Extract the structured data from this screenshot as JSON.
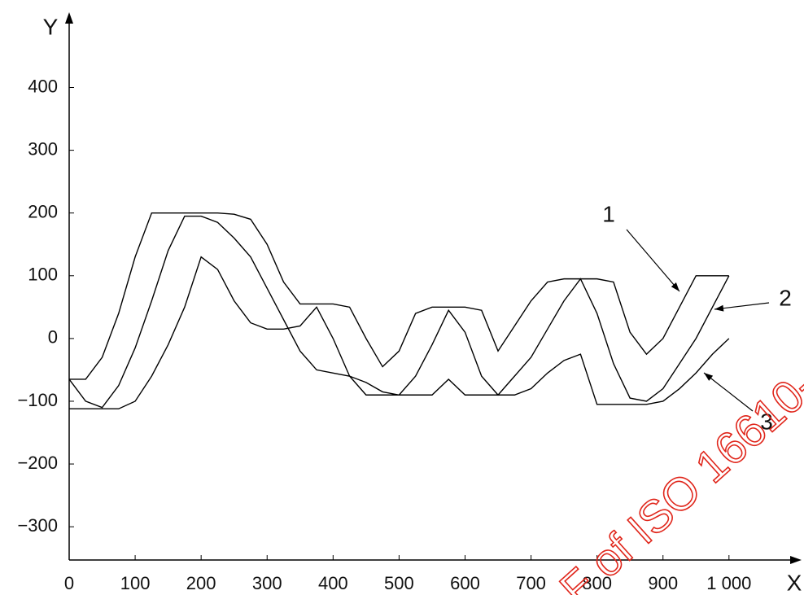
{
  "chart_data": {
    "type": "line",
    "x_label": "X",
    "y_label": "Y",
    "watermark": "F of ISO 16610-",
    "xlim": [
      0,
      1110
    ],
    "ylim": [
      -353,
      520
    ],
    "xticks": [
      0,
      100,
      200,
      300,
      400,
      500,
      600,
      700,
      800,
      900,
      {
        "value": 1000,
        "label": "1 000"
      }
    ],
    "yticks": [
      {
        "value": -300,
        "label": "−300"
      },
      {
        "value": -200,
        "label": "−200"
      },
      {
        "value": -100,
        "label": "−100"
      },
      0,
      100,
      200,
      300,
      400
    ],
    "grid": false,
    "x": [
      0,
      25,
      50,
      75,
      100,
      125,
      150,
      175,
      200,
      225,
      250,
      275,
      300,
      325,
      350,
      375,
      400,
      425,
      450,
      475,
      500,
      525,
      550,
      575,
      600,
      625,
      650,
      675,
      700,
      725,
      750,
      775,
      800,
      825,
      850,
      875,
      900,
      925,
      950,
      975,
      1000
    ],
    "series": [
      {
        "name": "1",
        "color": "#000000",
        "values": [
          -65,
          -65,
          -30,
          40,
          130,
          200,
          200,
          200,
          200,
          200,
          198,
          190,
          150,
          90,
          55,
          55,
          55,
          50,
          0,
          -45,
          -20,
          40,
          50,
          50,
          50,
          45,
          -20,
          20,
          60,
          90,
          95,
          95,
          95,
          90,
          10,
          -25,
          0,
          50,
          100,
          100,
          100
        ]
      },
      {
        "name": "2",
        "color": "#000000",
        "values": [
          -65,
          -100,
          -110,
          -75,
          -15,
          60,
          140,
          195,
          195,
          185,
          160,
          130,
          80,
          30,
          -20,
          -50,
          -55,
          -60,
          -70,
          -85,
          -90,
          -60,
          -10,
          45,
          10,
          -60,
          -90,
          -60,
          -30,
          15,
          60,
          95,
          40,
          -40,
          -95,
          -100,
          -80,
          -40,
          0,
          50,
          100
        ]
      },
      {
        "name": "3",
        "color": "#000000",
        "values": [
          -112,
          -112,
          -112,
          -112,
          -100,
          -60,
          -10,
          50,
          130,
          110,
          60,
          25,
          15,
          15,
          20,
          50,
          0,
          -60,
          -90,
          -90,
          -90,
          -90,
          -90,
          -65,
          -90,
          -90,
          -90,
          -90,
          -80,
          -55,
          -35,
          -25,
          -105,
          -105,
          -105,
          -105,
          -100,
          -80,
          -55,
          -25,
          0
        ]
      }
    ]
  }
}
